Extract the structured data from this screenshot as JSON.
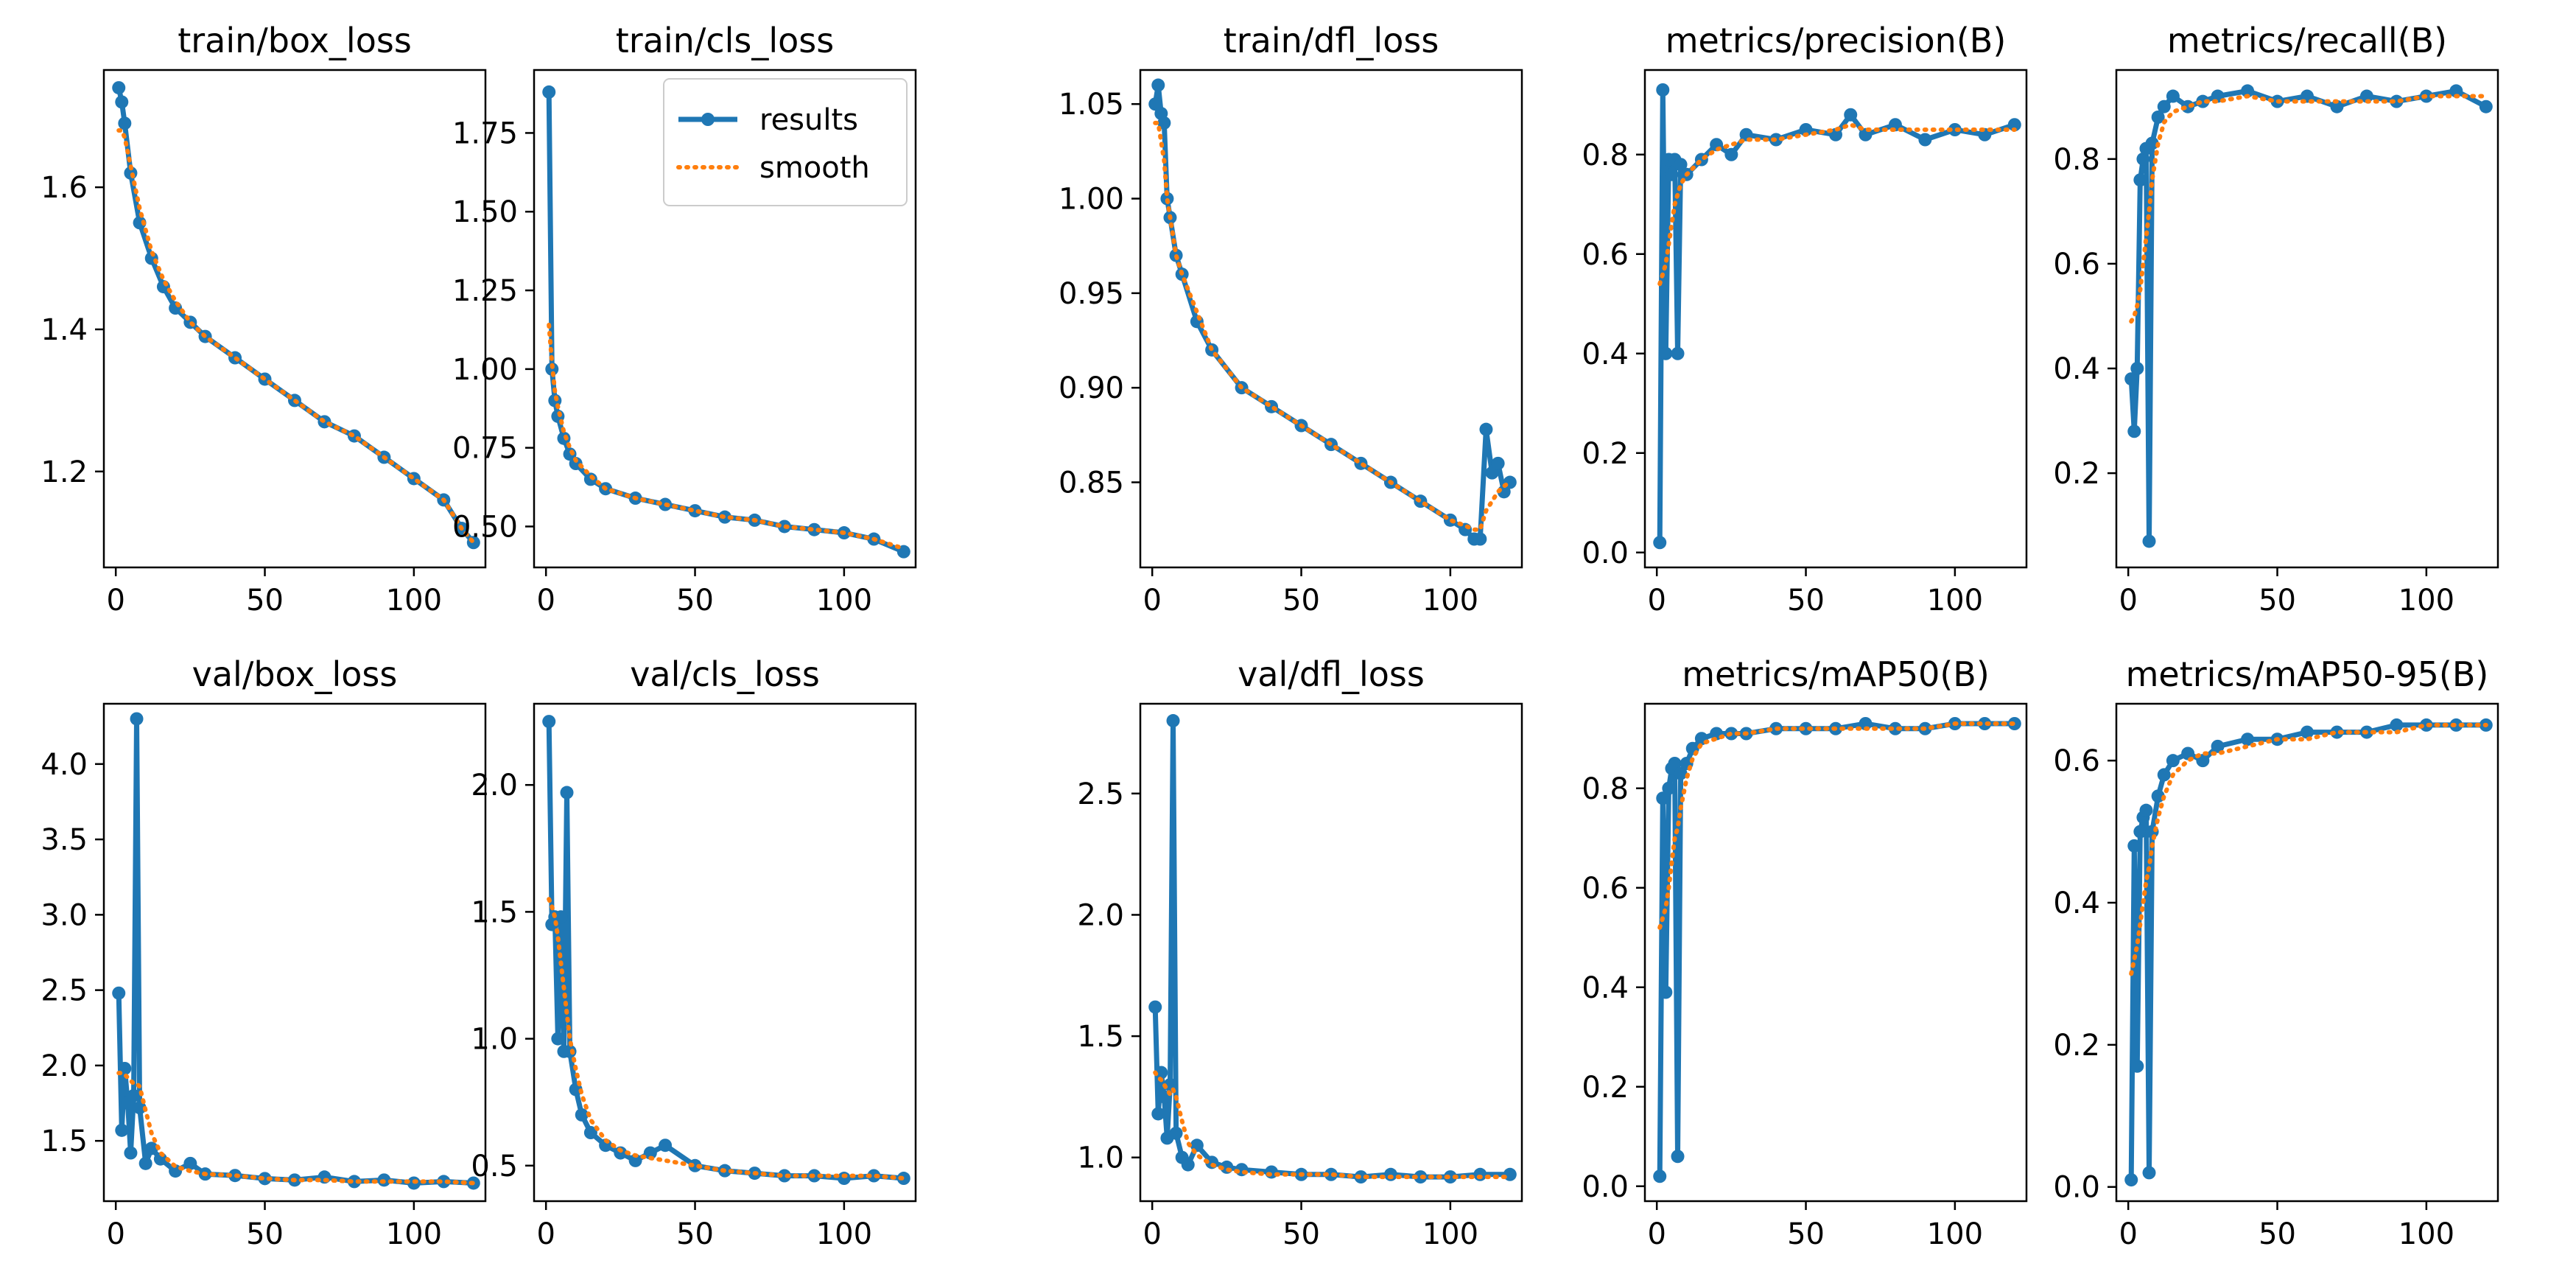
{
  "colors": {
    "results": "#1f77b4",
    "smooth": "#ff7f0e",
    "axes": "#000000",
    "background": "#ffffff"
  },
  "chart_data": [
    {
      "type": "line",
      "title": "train/box_loss",
      "xlim": [
        -4,
        124
      ],
      "ylim": [
        1.065,
        1.765
      ],
      "xticks": [
        0,
        50,
        100
      ],
      "yticks": [
        1.2,
        1.4,
        1.6
      ],
      "x": [
        1,
        2,
        3,
        5,
        8,
        12,
        16,
        20,
        25,
        30,
        40,
        50,
        60,
        70,
        80,
        90,
        100,
        110,
        116,
        120
      ],
      "results": [
        1.74,
        1.72,
        1.69,
        1.62,
        1.55,
        1.5,
        1.46,
        1.43,
        1.41,
        1.39,
        1.36,
        1.33,
        1.3,
        1.27,
        1.25,
        1.22,
        1.19,
        1.16,
        1.12,
        1.1
      ],
      "smooth": [
        1.68,
        1.68,
        1.67,
        1.63,
        1.57,
        1.51,
        1.47,
        1.44,
        1.41,
        1.39,
        1.36,
        1.33,
        1.3,
        1.27,
        1.25,
        1.22,
        1.19,
        1.16,
        1.12,
        1.1
      ]
    },
    {
      "type": "line",
      "title": "train/cls_loss",
      "xlim": [
        -4,
        124
      ],
      "ylim": [
        0.37,
        1.95
      ],
      "xticks": [
        0,
        50,
        100
      ],
      "yticks": [
        0.5,
        0.75,
        1.0,
        1.25,
        1.5,
        1.75
      ],
      "ytick_labels": [
        "0.50",
        "0.75",
        "1.00",
        "1.25",
        "1.50",
        "1.75"
      ],
      "legend": {
        "position": "top-right",
        "entries": [
          "results",
          "smooth"
        ]
      },
      "x": [
        1,
        2,
        3,
        4,
        6,
        8,
        10,
        15,
        20,
        30,
        40,
        50,
        60,
        70,
        80,
        90,
        100,
        110,
        120
      ],
      "results": [
        1.88,
        1.0,
        0.9,
        0.85,
        0.78,
        0.73,
        0.7,
        0.65,
        0.62,
        0.59,
        0.57,
        0.55,
        0.53,
        0.52,
        0.5,
        0.49,
        0.48,
        0.46,
        0.42
      ],
      "smooth": [
        1.14,
        1.02,
        0.93,
        0.88,
        0.8,
        0.75,
        0.71,
        0.66,
        0.62,
        0.59,
        0.57,
        0.55,
        0.53,
        0.52,
        0.5,
        0.49,
        0.48,
        0.46,
        0.43
      ]
    },
    {
      "type": "line",
      "title": "train/dfl_loss",
      "xlim": [
        -4,
        124
      ],
      "ylim": [
        0.805,
        1.068
      ],
      "xticks": [
        0,
        50,
        100
      ],
      "yticks": [
        0.85,
        0.9,
        0.95,
        1.0,
        1.05
      ],
      "ytick_labels": [
        "0.85",
        "0.90",
        "0.95",
        "1.00",
        "1.05"
      ],
      "x": [
        1,
        2,
        3,
        4,
        5,
        6,
        8,
        10,
        15,
        20,
        30,
        40,
        50,
        60,
        70,
        80,
        90,
        100,
        105,
        108,
        110,
        112,
        114,
        116,
        118,
        120
      ],
      "results": [
        1.05,
        1.06,
        1.045,
        1.04,
        1.0,
        0.99,
        0.97,
        0.96,
        0.935,
        0.92,
        0.9,
        0.89,
        0.88,
        0.87,
        0.86,
        0.85,
        0.84,
        0.83,
        0.825,
        0.82,
        0.82,
        0.878,
        0.855,
        0.86,
        0.845,
        0.85
      ],
      "smooth": [
        1.04,
        1.04,
        1.03,
        1.02,
        1.0,
        0.99,
        0.97,
        0.96,
        0.94,
        0.92,
        0.9,
        0.89,
        0.88,
        0.87,
        0.86,
        0.85,
        0.84,
        0.83,
        0.827,
        0.825,
        0.825,
        0.835,
        0.84,
        0.845,
        0.848,
        0.85
      ]
    },
    {
      "type": "line",
      "title": "metrics/precision(B)",
      "xlim": [
        -4,
        124
      ],
      "ylim": [
        -0.03,
        0.97
      ],
      "xticks": [
        0,
        50,
        100
      ],
      "yticks": [
        0,
        0.2,
        0.4,
        0.6,
        0.8
      ],
      "ytick_labels": [
        "0.0",
        "0.2",
        "0.4",
        "0.6",
        "0.8"
      ],
      "x": [
        1,
        2,
        3,
        4,
        5,
        6,
        7,
        8,
        10,
        15,
        20,
        25,
        30,
        40,
        50,
        60,
        65,
        70,
        80,
        90,
        100,
        110,
        120
      ],
      "results": [
        0.02,
        0.93,
        0.4,
        0.79,
        0.76,
        0.79,
        0.4,
        0.78,
        0.76,
        0.79,
        0.82,
        0.8,
        0.84,
        0.83,
        0.85,
        0.84,
        0.88,
        0.84,
        0.86,
        0.83,
        0.85,
        0.84,
        0.86
      ],
      "smooth": [
        0.54,
        0.56,
        0.58,
        0.62,
        0.66,
        0.7,
        0.72,
        0.74,
        0.76,
        0.79,
        0.81,
        0.82,
        0.83,
        0.83,
        0.84,
        0.85,
        0.86,
        0.85,
        0.85,
        0.85,
        0.85,
        0.85,
        0.85
      ]
    },
    {
      "type": "line",
      "title": "metrics/recall(B)",
      "xlim": [
        -4,
        124
      ],
      "ylim": [
        0.02,
        0.97
      ],
      "xticks": [
        0,
        50,
        100
      ],
      "yticks": [
        0.2,
        0.4,
        0.6,
        0.8
      ],
      "x": [
        1,
        2,
        3,
        4,
        5,
        6,
        7,
        8,
        10,
        12,
        15,
        20,
        25,
        30,
        40,
        50,
        60,
        70,
        80,
        90,
        100,
        110,
        120
      ],
      "results": [
        0.38,
        0.28,
        0.4,
        0.76,
        0.8,
        0.82,
        0.07,
        0.83,
        0.88,
        0.9,
        0.92,
        0.9,
        0.91,
        0.92,
        0.93,
        0.91,
        0.92,
        0.9,
        0.92,
        0.91,
        0.92,
        0.93,
        0.9
      ],
      "smooth": [
        0.49,
        0.5,
        0.52,
        0.55,
        0.6,
        0.65,
        0.7,
        0.76,
        0.83,
        0.87,
        0.89,
        0.9,
        0.91,
        0.91,
        0.92,
        0.91,
        0.91,
        0.91,
        0.91,
        0.91,
        0.92,
        0.92,
        0.92
      ]
    },
    {
      "type": "line",
      "title": "val/box_loss",
      "xlim": [
        -4,
        124
      ],
      "ylim": [
        1.1,
        4.4
      ],
      "xticks": [
        0,
        50,
        100
      ],
      "yticks": [
        1.5,
        2.0,
        2.5,
        3.0,
        3.5,
        4.0
      ],
      "ytick_labels": [
        "1.5",
        "2.0",
        "2.5",
        "3.0",
        "3.5",
        "4.0"
      ],
      "x": [
        1,
        2,
        3,
        4,
        5,
        6,
        7,
        8,
        10,
        12,
        15,
        20,
        25,
        30,
        40,
        50,
        60,
        70,
        80,
        90,
        100,
        110,
        120
      ],
      "results": [
        2.48,
        1.57,
        1.98,
        1.75,
        1.42,
        1.8,
        4.3,
        1.72,
        1.35,
        1.45,
        1.38,
        1.3,
        1.35,
        1.28,
        1.27,
        1.25,
        1.24,
        1.26,
        1.23,
        1.24,
        1.22,
        1.23,
        1.22
      ],
      "smooth": [
        1.95,
        1.95,
        1.94,
        1.92,
        1.9,
        1.88,
        1.88,
        1.86,
        1.7,
        1.55,
        1.42,
        1.33,
        1.3,
        1.28,
        1.27,
        1.25,
        1.24,
        1.24,
        1.23,
        1.23,
        1.23,
        1.23,
        1.22
      ]
    },
    {
      "type": "line",
      "title": "val/cls_loss",
      "xlim": [
        -4,
        124
      ],
      "ylim": [
        0.36,
        2.32
      ],
      "xticks": [
        0,
        50,
        100
      ],
      "yticks": [
        0.5,
        1.0,
        1.5,
        2.0
      ],
      "ytick_labels": [
        "0.5",
        "1.0",
        "1.5",
        "2.0"
      ],
      "x": [
        1,
        2,
        3,
        4,
        5,
        6,
        7,
        8,
        10,
        12,
        15,
        20,
        25,
        30,
        35,
        40,
        50,
        60,
        70,
        80,
        90,
        100,
        110,
        120
      ],
      "results": [
        2.25,
        1.45,
        1.48,
        1.0,
        1.48,
        0.95,
        1.97,
        0.95,
        0.8,
        0.7,
        0.63,
        0.58,
        0.55,
        0.52,
        0.55,
        0.58,
        0.5,
        0.48,
        0.47,
        0.46,
        0.46,
        0.45,
        0.46,
        0.45
      ],
      "smooth": [
        1.55,
        1.52,
        1.48,
        1.4,
        1.3,
        1.2,
        1.1,
        1.0,
        0.88,
        0.78,
        0.68,
        0.6,
        0.56,
        0.54,
        0.53,
        0.52,
        0.5,
        0.48,
        0.47,
        0.46,
        0.46,
        0.46,
        0.46,
        0.45
      ]
    },
    {
      "type": "line",
      "title": "val/dfl_loss",
      "xlim": [
        -4,
        124
      ],
      "ylim": [
        0.82,
        2.87
      ],
      "xticks": [
        0,
        50,
        100
      ],
      "yticks": [
        1.0,
        1.5,
        2.0,
        2.5
      ],
      "ytick_labels": [
        "1.0",
        "1.5",
        "2.0",
        "2.5"
      ],
      "x": [
        1,
        2,
        3,
        4,
        5,
        6,
        7,
        8,
        10,
        12,
        15,
        20,
        25,
        30,
        40,
        50,
        60,
        70,
        80,
        90,
        100,
        110,
        120
      ],
      "results": [
        1.62,
        1.18,
        1.35,
        1.25,
        1.08,
        1.3,
        2.8,
        1.1,
        1.0,
        0.97,
        1.05,
        0.98,
        0.96,
        0.95,
        0.94,
        0.93,
        0.93,
        0.92,
        0.93,
        0.92,
        0.92,
        0.93,
        0.93
      ],
      "smooth": [
        1.35,
        1.33,
        1.32,
        1.3,
        1.28,
        1.26,
        1.28,
        1.25,
        1.15,
        1.06,
        1.01,
        0.97,
        0.95,
        0.94,
        0.93,
        0.93,
        0.93,
        0.92,
        0.92,
        0.92,
        0.92,
        0.92,
        0.92
      ]
    },
    {
      "type": "line",
      "title": "metrics/mAP50(B)",
      "xlim": [
        -4,
        124
      ],
      "ylim": [
        -0.03,
        0.97
      ],
      "xticks": [
        0,
        50,
        100
      ],
      "yticks": [
        0,
        0.2,
        0.4,
        0.6,
        0.8
      ],
      "ytick_labels": [
        "0.0",
        "0.2",
        "0.4",
        "0.6",
        "0.8"
      ],
      "x": [
        1,
        2,
        3,
        4,
        5,
        6,
        7,
        8,
        10,
        12,
        15,
        20,
        25,
        30,
        40,
        50,
        60,
        70,
        80,
        90,
        100,
        110,
        120
      ],
      "results": [
        0.02,
        0.78,
        0.39,
        0.8,
        0.84,
        0.85,
        0.06,
        0.83,
        0.85,
        0.88,
        0.9,
        0.91,
        0.91,
        0.91,
        0.92,
        0.92,
        0.92,
        0.93,
        0.92,
        0.92,
        0.93,
        0.93,
        0.93
      ],
      "smooth": [
        0.52,
        0.54,
        0.56,
        0.6,
        0.65,
        0.7,
        0.72,
        0.76,
        0.82,
        0.86,
        0.89,
        0.9,
        0.91,
        0.91,
        0.92,
        0.92,
        0.92,
        0.92,
        0.92,
        0.92,
        0.93,
        0.93,
        0.93
      ]
    },
    {
      "type": "line",
      "title": "metrics/mAP50-95(B)",
      "xlim": [
        -4,
        124
      ],
      "ylim": [
        -0.02,
        0.68
      ],
      "xticks": [
        0,
        50,
        100
      ],
      "yticks": [
        0,
        0.2,
        0.4,
        0.6
      ],
      "ytick_labels": [
        "0.0",
        "0.2",
        "0.4",
        "0.6"
      ],
      "x": [
        1,
        2,
        3,
        4,
        5,
        6,
        7,
        8,
        10,
        12,
        15,
        20,
        25,
        30,
        40,
        50,
        60,
        70,
        80,
        90,
        100,
        110,
        120
      ],
      "results": [
        0.01,
        0.48,
        0.17,
        0.5,
        0.52,
        0.53,
        0.02,
        0.5,
        0.55,
        0.58,
        0.6,
        0.61,
        0.6,
        0.62,
        0.63,
        0.63,
        0.64,
        0.64,
        0.64,
        0.65,
        0.65,
        0.65,
        0.65
      ],
      "smooth": [
        0.3,
        0.32,
        0.34,
        0.37,
        0.4,
        0.43,
        0.45,
        0.48,
        0.52,
        0.55,
        0.58,
        0.6,
        0.61,
        0.61,
        0.62,
        0.63,
        0.63,
        0.64,
        0.64,
        0.64,
        0.65,
        0.65,
        0.65
      ]
    }
  ]
}
